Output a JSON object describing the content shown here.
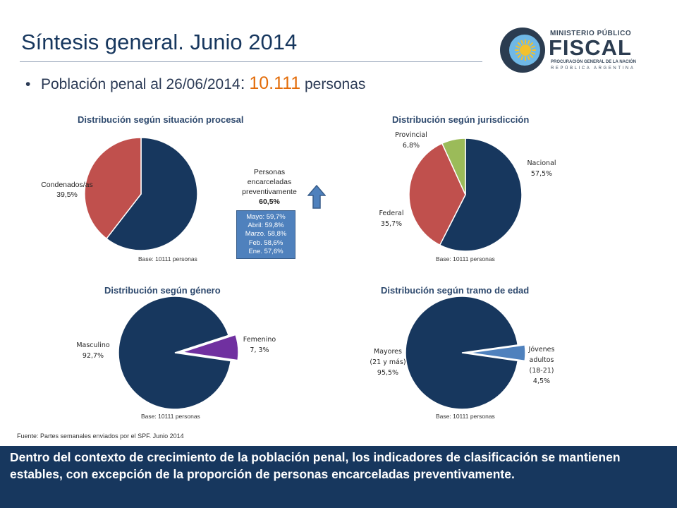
{
  "header": {
    "title": "Síntesis general. Junio 2014",
    "bullet_text": "Población penal al 26/06/2014",
    "bullet_sep": ":",
    "bullet_value": "10.111",
    "bullet_unit": "personas"
  },
  "logo": {
    "line1": "MINISTERIO PÚBLICO",
    "line2": "FISCAL",
    "line3": "PROCURACIÓN GENERAL DE LA NACIÓN",
    "line4": "REPÚBLICA ARGENTINA",
    "colors": {
      "outer": "#2b3c50",
      "inner": "#6fb8e6",
      "sun": "#f2c12e"
    }
  },
  "history": [
    "Mayo: 59,7%",
    "Abril: 59,8%",
    "Marzo. 58,8%",
    "Feb. 58,6%",
    "Ene. 57,6%"
  ],
  "source": "Fuente: Partes semanales enviados por el SPF. Junio 2014",
  "footer": "Dentro del contexto de crecimiento de la población penal, los indicadores de clasificación se mantienen estables, con excepción de la proporción de personas encarceladas preventivamente.",
  "chart_data": [
    {
      "type": "pie",
      "title": "Distribución según situación procesal",
      "base_note": "Base: 10111 personas",
      "slices": [
        {
          "label": [
            "Personas",
            "encarceladas",
            "preventivamente"
          ],
          "value_label": "60,5%",
          "value": 60.5,
          "color": "#17375e"
        },
        {
          "label": [
            "Condenados/as"
          ],
          "value_label": "39,5%",
          "value": 39.5,
          "color": "#c0504d"
        }
      ]
    },
    {
      "type": "pie",
      "title": "Distribución según jurisdicción",
      "base_note": "Base: 10111 personas",
      "slices": [
        {
          "label": [
            "Nacional"
          ],
          "value_label": "57,5%",
          "value": 57.5,
          "color": "#17375e"
        },
        {
          "label": [
            "Federal"
          ],
          "value_label": "35,7%",
          "value": 35.7,
          "color": "#c0504d"
        },
        {
          "label": [
            "Provincial"
          ],
          "value_label": "6,8%",
          "value": 6.8,
          "color": "#9bbb59"
        }
      ]
    },
    {
      "type": "pie",
      "title": "Distribución según género",
      "base_note": "Base: 10111 personas",
      "slices": [
        {
          "label": [
            "Femenino"
          ],
          "value_label": "7, 3%",
          "value": 7.3,
          "color": "#7030a0"
        },
        {
          "label": [
            "Masculino"
          ],
          "value_label": "92,7%",
          "value": 92.7,
          "color": "#17375e"
        }
      ]
    },
    {
      "type": "pie",
      "title": "Distribución según tramo de edad",
      "base_note": "Base: 10111 personas",
      "slices": [
        {
          "label": [
            "Jóvenes",
            "adultos",
            "(18-21)"
          ],
          "value_label": "4,5%",
          "value": 4.5,
          "color": "#4f81bd"
        },
        {
          "label": [
            "Mayores",
            "(21 y más)"
          ],
          "value_label": "95,5%",
          "value": 95.5,
          "color": "#17375e"
        }
      ]
    }
  ]
}
